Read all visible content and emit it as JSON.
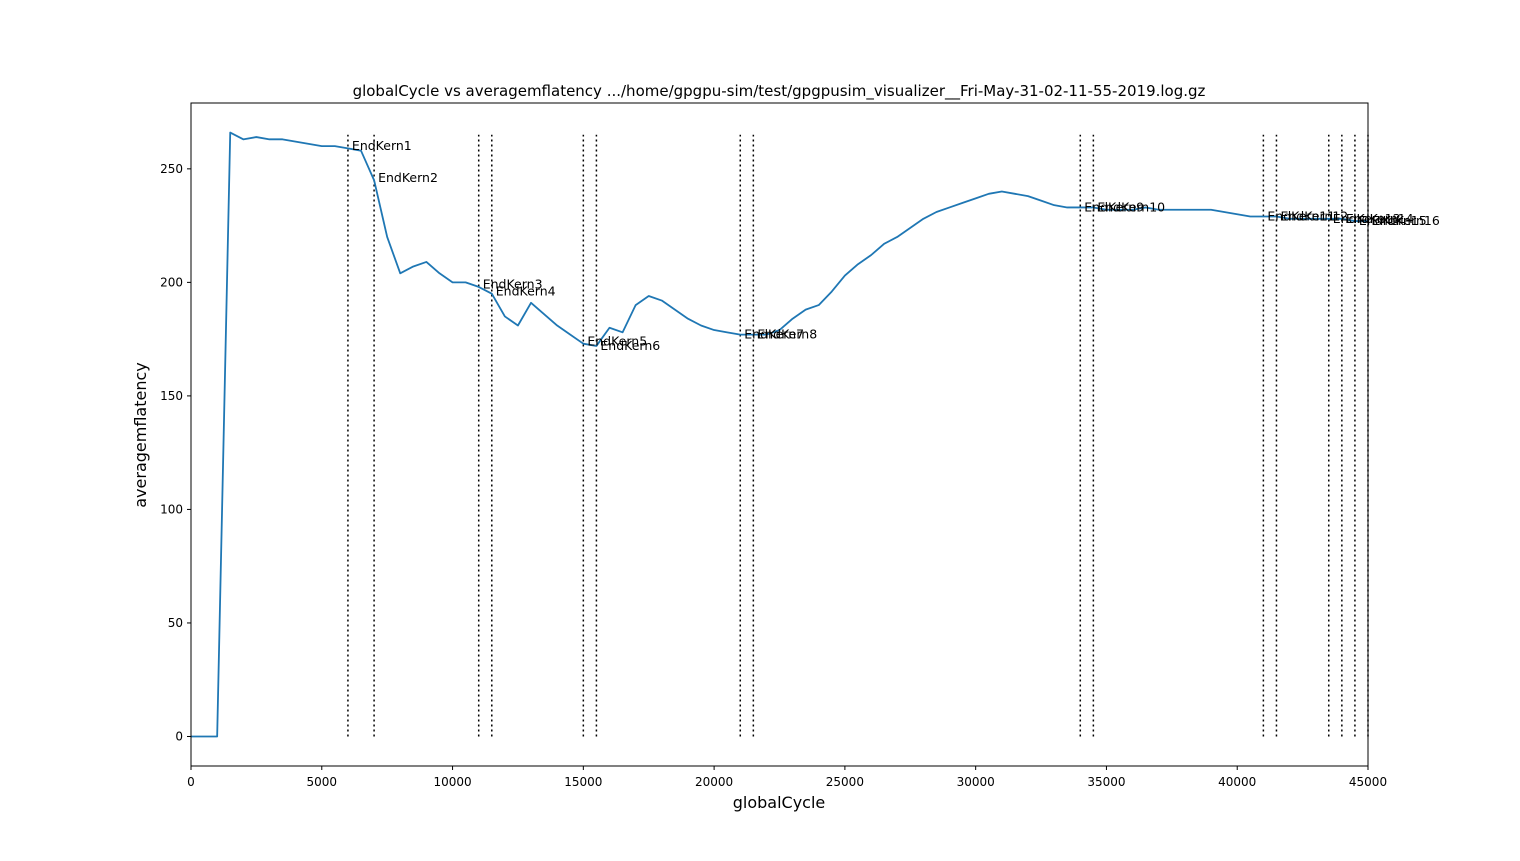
{
  "chart_data": {
    "type": "line",
    "title": "globalCycle vs averagemflatency .../home/gpgpu-sim/test/gpgpusim_visualizer__Fri-May-31-02-11-55-2019.log.gz",
    "xlabel": "globalCycle",
    "ylabel": "averagemflatency",
    "xlim": [
      0,
      45000
    ],
    "ylim": [
      -13,
      279
    ],
    "x_ticks": [
      0,
      5000,
      10000,
      15000,
      20000,
      25000,
      30000,
      35000,
      40000,
      45000
    ],
    "y_ticks": [
      0,
      50,
      100,
      150,
      200,
      250
    ],
    "grid": false,
    "line_color": "#1f77b4",
    "series": [
      {
        "points": [
          [
            0,
            0
          ],
          [
            500,
            0
          ],
          [
            1000,
            0
          ],
          [
            1500,
            266
          ],
          [
            2000,
            263
          ],
          [
            2500,
            264
          ],
          [
            3000,
            263
          ],
          [
            3500,
            263
          ],
          [
            4000,
            262
          ],
          [
            4500,
            261
          ],
          [
            5000,
            260
          ],
          [
            5500,
            260
          ],
          [
            6000,
            259
          ],
          [
            6500,
            258
          ],
          [
            7000,
            245
          ],
          [
            7500,
            220
          ],
          [
            8000,
            204
          ],
          [
            8500,
            207
          ],
          [
            9000,
            209
          ],
          [
            9500,
            204
          ],
          [
            10000,
            200
          ],
          [
            10500,
            200
          ],
          [
            11000,
            198
          ],
          [
            11500,
            195
          ],
          [
            12000,
            185
          ],
          [
            12500,
            181
          ],
          [
            13000,
            191
          ],
          [
            13500,
            186
          ],
          [
            14000,
            181
          ],
          [
            14500,
            177
          ],
          [
            15000,
            173
          ],
          [
            15500,
            172
          ],
          [
            16000,
            180
          ],
          [
            16500,
            178
          ],
          [
            17000,
            190
          ],
          [
            17500,
            194
          ],
          [
            18000,
            192
          ],
          [
            18500,
            188
          ],
          [
            19000,
            184
          ],
          [
            19500,
            181
          ],
          [
            20000,
            179
          ],
          [
            20500,
            178
          ],
          [
            21000,
            177
          ],
          [
            21500,
            177
          ],
          [
            22000,
            177
          ],
          [
            22500,
            179
          ],
          [
            23000,
            184
          ],
          [
            23500,
            188
          ],
          [
            24000,
            190
          ],
          [
            24500,
            196
          ],
          [
            25000,
            203
          ],
          [
            25500,
            208
          ],
          [
            26000,
            212
          ],
          [
            26500,
            217
          ],
          [
            27000,
            220
          ],
          [
            27500,
            224
          ],
          [
            28000,
            228
          ],
          [
            28500,
            231
          ],
          [
            29000,
            233
          ],
          [
            29500,
            235
          ],
          [
            30000,
            237
          ],
          [
            30500,
            239
          ],
          [
            31000,
            240
          ],
          [
            31500,
            239
          ],
          [
            32000,
            238
          ],
          [
            32500,
            236
          ],
          [
            33000,
            234
          ],
          [
            33500,
            233
          ],
          [
            34000,
            233
          ],
          [
            34500,
            233
          ],
          [
            35000,
            232
          ],
          [
            35500,
            232
          ],
          [
            36000,
            232
          ],
          [
            36500,
            233
          ],
          [
            37000,
            232
          ],
          [
            37500,
            232
          ],
          [
            38000,
            232
          ],
          [
            38500,
            232
          ],
          [
            39000,
            232
          ],
          [
            39500,
            231
          ],
          [
            40000,
            230
          ],
          [
            40500,
            229
          ],
          [
            41000,
            229
          ],
          [
            41500,
            229
          ],
          [
            42000,
            228
          ],
          [
            42500,
            228
          ],
          [
            43000,
            228
          ],
          [
            43500,
            228
          ],
          [
            44000,
            228
          ],
          [
            44500,
            227
          ],
          [
            45000,
            227
          ]
        ]
      }
    ],
    "kernel_markers": [
      {
        "x": 6000,
        "label": "EndKern1",
        "label_y": 260
      },
      {
        "x": 7000,
        "label": "EndKern2",
        "label_y": 246
      },
      {
        "x": 11000,
        "label": "EndKern3",
        "label_y": 199
      },
      {
        "x": 11500,
        "label": "EndKern4",
        "label_y": 196
      },
      {
        "x": 15000,
        "label": "EndKern5",
        "label_y": 174
      },
      {
        "x": 15500,
        "label": "EndKern6",
        "label_y": 172
      },
      {
        "x": 21000,
        "label": "EndKern7",
        "label_y": 177
      },
      {
        "x": 21500,
        "label": "EndKern8",
        "label_y": 177
      },
      {
        "x": 34000,
        "label": "EndKern9",
        "label_y": 233
      },
      {
        "x": 34500,
        "label": "EndKern10",
        "label_y": 233
      },
      {
        "x": 41000,
        "label": "EndKern11",
        "label_y": 229
      },
      {
        "x": 41500,
        "label": "EndKern12",
        "label_y": 229
      },
      {
        "x": 43500,
        "label": "EndKern13",
        "label_y": 228
      },
      {
        "x": 44000,
        "label": "EndKern14",
        "label_y": 228
      },
      {
        "x": 44500,
        "label": "EndKern15",
        "label_y": 227
      },
      {
        "x": 45000,
        "label": "EndKern16",
        "label_y": 227
      }
    ]
  }
}
